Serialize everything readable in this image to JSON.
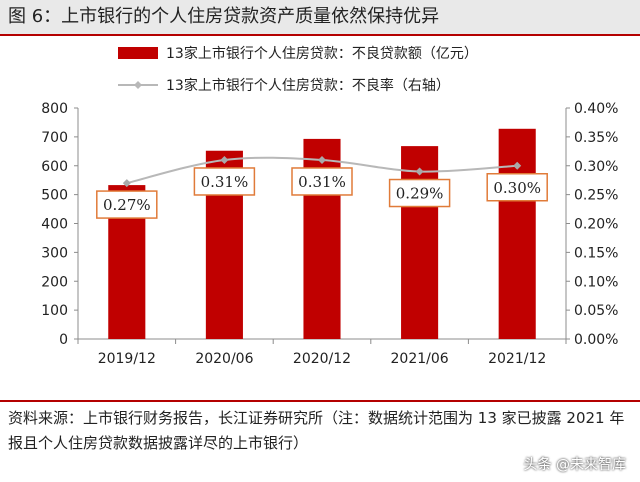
{
  "figure": {
    "title": "图 6：上市银行的个人住房贷款资产质量依然保持优异",
    "source": "资料来源：上市银行财务报告，长江证券研究所（注：数据统计范围为 13 家已披露 2021 年报且个人住房贷款数据披露详尽的上市银行）",
    "watermark": "头条 @未来智库"
  },
  "chart_data": {
    "type": "bar",
    "categories": [
      "2019/12",
      "2020/06",
      "2020/12",
      "2021/06",
      "2021/12"
    ],
    "series": [
      {
        "name": "13家上市银行个人住房贷款：不良贷款额（亿元）",
        "type": "bar",
        "axis": "left",
        "color": "#c00000",
        "values": [
          533,
          652,
          693,
          668,
          728
        ]
      },
      {
        "name": "13家上市银行个人住房贷款：不良率（右轴）",
        "type": "line",
        "axis": "right",
        "color": "#b8b8b8",
        "values": [
          0.27,
          0.31,
          0.31,
          0.29,
          0.3
        ],
        "data_labels": [
          "0.27%",
          "0.31%",
          "0.31%",
          "0.29%",
          "0.30%"
        ]
      }
    ],
    "y_left": {
      "min": 0,
      "max": 800,
      "ticks": [
        "0",
        "100",
        "200",
        "300",
        "400",
        "500",
        "600",
        "700",
        "800"
      ]
    },
    "y_right": {
      "min": 0,
      "max": 0.4,
      "ticks": [
        "0.00%",
        "0.05%",
        "0.10%",
        "0.15%",
        "0.20%",
        "0.25%",
        "0.30%",
        "0.35%",
        "0.40%"
      ]
    },
    "grid": false,
    "legend": "top-center"
  }
}
